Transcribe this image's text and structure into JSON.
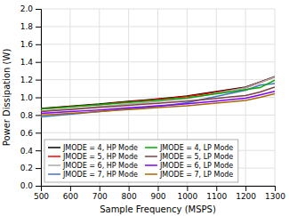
{
  "chart_data": {
    "type": "line",
    "x": [
      500,
      550,
      600,
      650,
      700,
      750,
      800,
      850,
      900,
      950,
      1000,
      1050,
      1100,
      1150,
      1200,
      1250,
      1300
    ],
    "series": [
      {
        "name": "JMODE = 4, HP Mode",
        "color": "#000000",
        "values": [
          0.875,
          0.888,
          0.9,
          0.912,
          0.924,
          0.94,
          0.955,
          0.968,
          0.982,
          0.998,
          1.015,
          1.04,
          1.065,
          1.09,
          1.115,
          1.175,
          1.235
        ]
      },
      {
        "name": "JMODE = 5, HP Mode",
        "color": "#ff0000",
        "values": [
          0.87,
          0.882,
          0.894,
          0.906,
          0.918,
          0.935,
          0.95,
          0.963,
          0.977,
          0.993,
          1.01,
          1.033,
          1.058,
          1.083,
          1.108,
          1.168,
          1.228
        ]
      },
      {
        "name": "JMODE = 6, HP Mode",
        "color": "#aaaaaa",
        "values": [
          0.845,
          0.858,
          0.87,
          0.882,
          0.896,
          0.91,
          0.925,
          0.938,
          0.952,
          0.968,
          0.985,
          1.015,
          1.048,
          1.078,
          1.108,
          1.168,
          1.228
        ]
      },
      {
        "name": "JMODE = 7, HP Mode",
        "color": "#4472c4",
        "values": [
          0.78,
          0.795,
          0.81,
          0.825,
          0.84,
          0.855,
          0.87,
          0.883,
          0.898,
          0.918,
          0.94,
          0.975,
          1.01,
          1.045,
          1.08,
          1.138,
          1.155
        ]
      },
      {
        "name": "JMODE = 4, LP Mode",
        "color": "#00aa00",
        "values": [
          0.87,
          0.88,
          0.892,
          0.904,
          0.916,
          0.93,
          0.943,
          0.955,
          0.968,
          0.982,
          0.996,
          1.018,
          1.04,
          1.063,
          1.087,
          1.11,
          1.195
        ]
      },
      {
        "name": "JMODE = 5, LP Mode",
        "color": "#7f3f3f",
        "values": [
          0.84,
          0.852,
          0.862,
          0.874,
          0.886,
          0.898,
          0.91,
          0.922,
          0.933,
          0.945,
          0.957,
          0.972,
          0.988,
          1.005,
          1.02,
          1.06,
          1.115
        ]
      },
      {
        "name": "JMODE = 6, LP Mode",
        "color": "#7f00ff",
        "values": [
          0.818,
          0.828,
          0.838,
          0.848,
          0.858,
          0.87,
          0.882,
          0.893,
          0.904,
          0.915,
          0.927,
          0.942,
          0.958,
          0.975,
          0.99,
          1.028,
          1.068
        ]
      },
      {
        "name": "JMODE = 7, LP Mode",
        "color": "#aa6600",
        "values": [
          0.8,
          0.81,
          0.82,
          0.83,
          0.84,
          0.852,
          0.862,
          0.873,
          0.884,
          0.895,
          0.905,
          0.92,
          0.935,
          0.95,
          0.965,
          1.0,
          1.04
        ]
      }
    ],
    "xlabel": "Sample Frequency (MSPS)",
    "ylabel": "Power Dissipation (W)",
    "xlim": [
      500,
      1300
    ],
    "ylim": [
      0,
      2
    ],
    "xticks": [
      500,
      600,
      700,
      800,
      900,
      1000,
      1100,
      1200,
      1300
    ],
    "yticks": [
      {
        "value": 0,
        "label": "0.0"
      },
      0.2,
      0.4,
      0.6,
      0.8,
      {
        "value": 1.0,
        "label": "1.0"
      },
      1.2,
      1.4,
      1.6,
      1.8,
      {
        "value": 2.0,
        "label": "2.0"
      }
    ],
    "grid": true,
    "legend": "lower left"
  }
}
